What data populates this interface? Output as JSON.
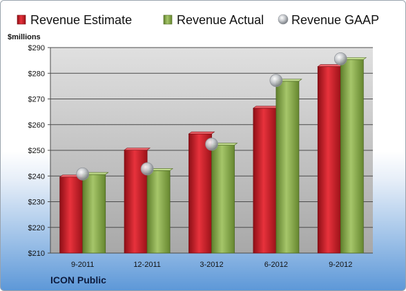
{
  "company": "ICON Public",
  "chart_data": {
    "type": "bar",
    "ylabel": "$millions",
    "ylim": [
      210,
      290
    ],
    "yticks": [
      210,
      220,
      230,
      240,
      250,
      260,
      270,
      280,
      290
    ],
    "ytick_labels": [
      "$210",
      "$220",
      "$230",
      "$240",
      "$250",
      "$260",
      "$270",
      "$280",
      "$290"
    ],
    "categories": [
      "9-2011",
      "12-2011",
      "3-2012",
      "6-2012",
      "9-2012"
    ],
    "grid": true,
    "legend_position": "top",
    "series": [
      {
        "name": "Revenue Estimate",
        "kind": "bar",
        "color": "#cc1f2a",
        "values": [
          239.6,
          250.1,
          256.4,
          266.4,
          282.6
        ]
      },
      {
        "name": "Revenue Actual",
        "kind": "bar",
        "color": "#8aac4e",
        "values": [
          240.6,
          242.1,
          252.0,
          276.9,
          285.3
        ]
      },
      {
        "name": "Revenue GAAP",
        "kind": "marker",
        "color": "#c4c8cc",
        "values": [
          240.8,
          242.8,
          252.4,
          277.2,
          285.6
        ]
      }
    ]
  }
}
